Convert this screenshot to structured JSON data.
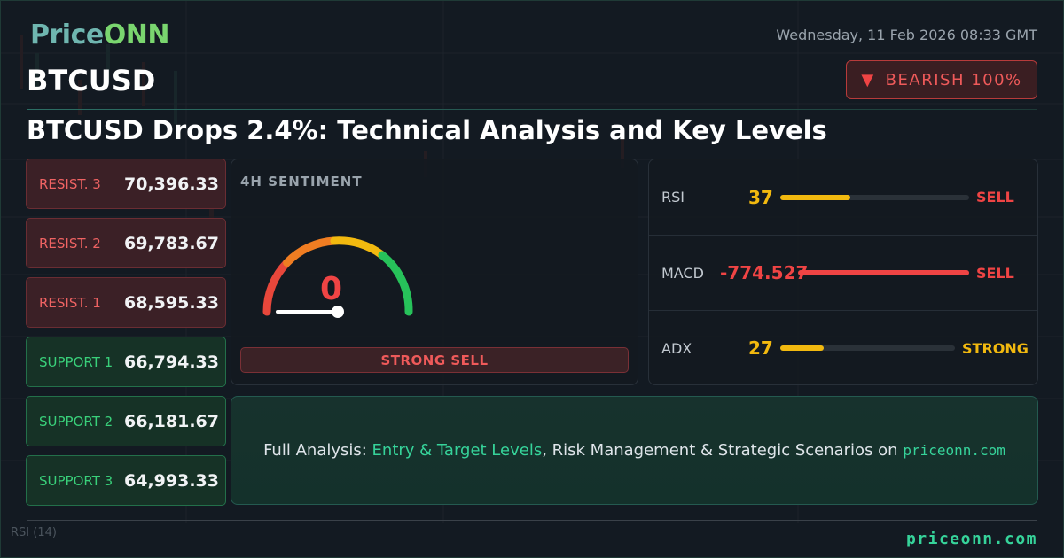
{
  "brand": {
    "part1": "Price",
    "part2": "ONN"
  },
  "date": "Wednesday, 11 Feb 2026 08:33 GMT",
  "symbol": "BTCUSD",
  "bias": {
    "label": "BEARISH 100%",
    "icon": "down-triangle-icon",
    "color": "#ef4444"
  },
  "headline": "BTCUSD Drops 2.4%: Technical Analysis and Key Levels",
  "levels": [
    {
      "label": "RESIST. 3",
      "value": "70,396.33",
      "kind": "resistance"
    },
    {
      "label": "RESIST. 2",
      "value": "69,783.67",
      "kind": "resistance"
    },
    {
      "label": "RESIST. 1",
      "value": "68,595.33",
      "kind": "resistance"
    },
    {
      "label": "SUPPORT 1",
      "value": "66,794.33",
      "kind": "support"
    },
    {
      "label": "SUPPORT 2",
      "value": "66,181.67",
      "kind": "support"
    },
    {
      "label": "SUPPORT 3",
      "value": "64,993.33",
      "kind": "support"
    }
  ],
  "sentiment": {
    "title": "4H SENTIMENT",
    "value": "0",
    "signal": "STRONG SELL",
    "gauge_level": 0
  },
  "indicators": [
    {
      "name": "RSI",
      "value": "37",
      "signal": "SELL",
      "fill_fraction": 0.37,
      "value_color": "#f2b90f",
      "fill_color": "#f2b90f",
      "signal_color": "#ef4444"
    },
    {
      "name": "MACD",
      "value": "-774.527",
      "signal": "SELL",
      "fill_fraction": 1.0,
      "value_color": "#ef4444",
      "fill_color": "#ef4444",
      "signal_color": "#ef4444"
    },
    {
      "name": "ADX",
      "value": "27",
      "signal": "STRONG",
      "fill_fraction": 0.25,
      "value_color": "#f2b90f",
      "fill_color": "#f2b90f",
      "signal_color": "#f2b90f"
    }
  ],
  "cta": {
    "prefix": "Full Analysis: ",
    "highlight": "Entry & Target Levels",
    "middle": ", Risk Management & Strategic Scenarios on ",
    "site": "priceonn.com"
  },
  "background": {
    "rsi_label": "RSI  (14)"
  },
  "footer": {
    "site": "priceonn.com"
  },
  "colors": {
    "accent": "#36d39a",
    "resistance": "#f06363",
    "support": "#39d07a",
    "bearish": "#ef4444",
    "warning": "#f2b90f"
  }
}
